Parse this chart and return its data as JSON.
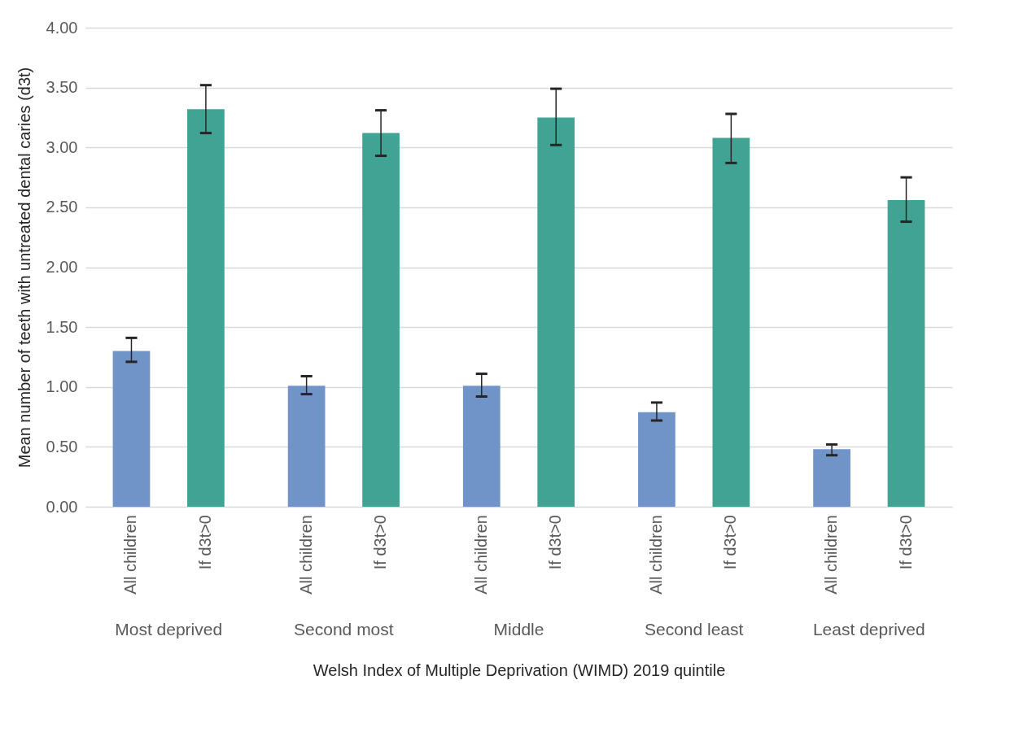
{
  "chart_data": {
    "type": "bar",
    "xlabel": "Welsh Index of Multiple Deprivation (WIMD) 2019 quintile",
    "ylabel": "Mean number of teeth with untreated dental caries (d3t)",
    "categories": [
      "Most deprived",
      "Second most",
      "Middle",
      "Second least",
      "Least deprived"
    ],
    "series": [
      {
        "name": "All children",
        "color": "#7094c8",
        "values": [
          1.3,
          1.01,
          1.01,
          0.79,
          0.48
        ],
        "errors": [
          [
            1.21,
            1.41
          ],
          [
            0.94,
            1.09
          ],
          [
            0.92,
            1.11
          ],
          [
            0.72,
            0.87
          ],
          [
            0.43,
            0.52
          ]
        ]
      },
      {
        "name": "If d3t>0",
        "color": "#41a394",
        "values": [
          3.32,
          3.12,
          3.25,
          3.08,
          2.56
        ],
        "errors": [
          [
            3.12,
            3.52
          ],
          [
            2.93,
            3.31
          ],
          [
            3.02,
            3.49
          ],
          [
            2.87,
            3.28
          ],
          [
            2.38,
            2.75
          ]
        ]
      }
    ],
    "ylim": [
      0,
      4
    ],
    "yticks": [
      {
        "value": 0,
        "label": "0.00"
      },
      {
        "value": 0.5,
        "label": "0.50"
      },
      {
        "value": 1,
        "label": "1.00"
      },
      {
        "value": 1.5,
        "label": "1.50"
      },
      {
        "value": 2,
        "label": "2.00"
      },
      {
        "value": 2.5,
        "label": "2.50"
      },
      {
        "value": 3,
        "label": "3.00"
      },
      {
        "value": 3.5,
        "label": "3.50"
      },
      {
        "value": 4,
        "label": "4.00"
      }
    ],
    "grid": "y"
  }
}
